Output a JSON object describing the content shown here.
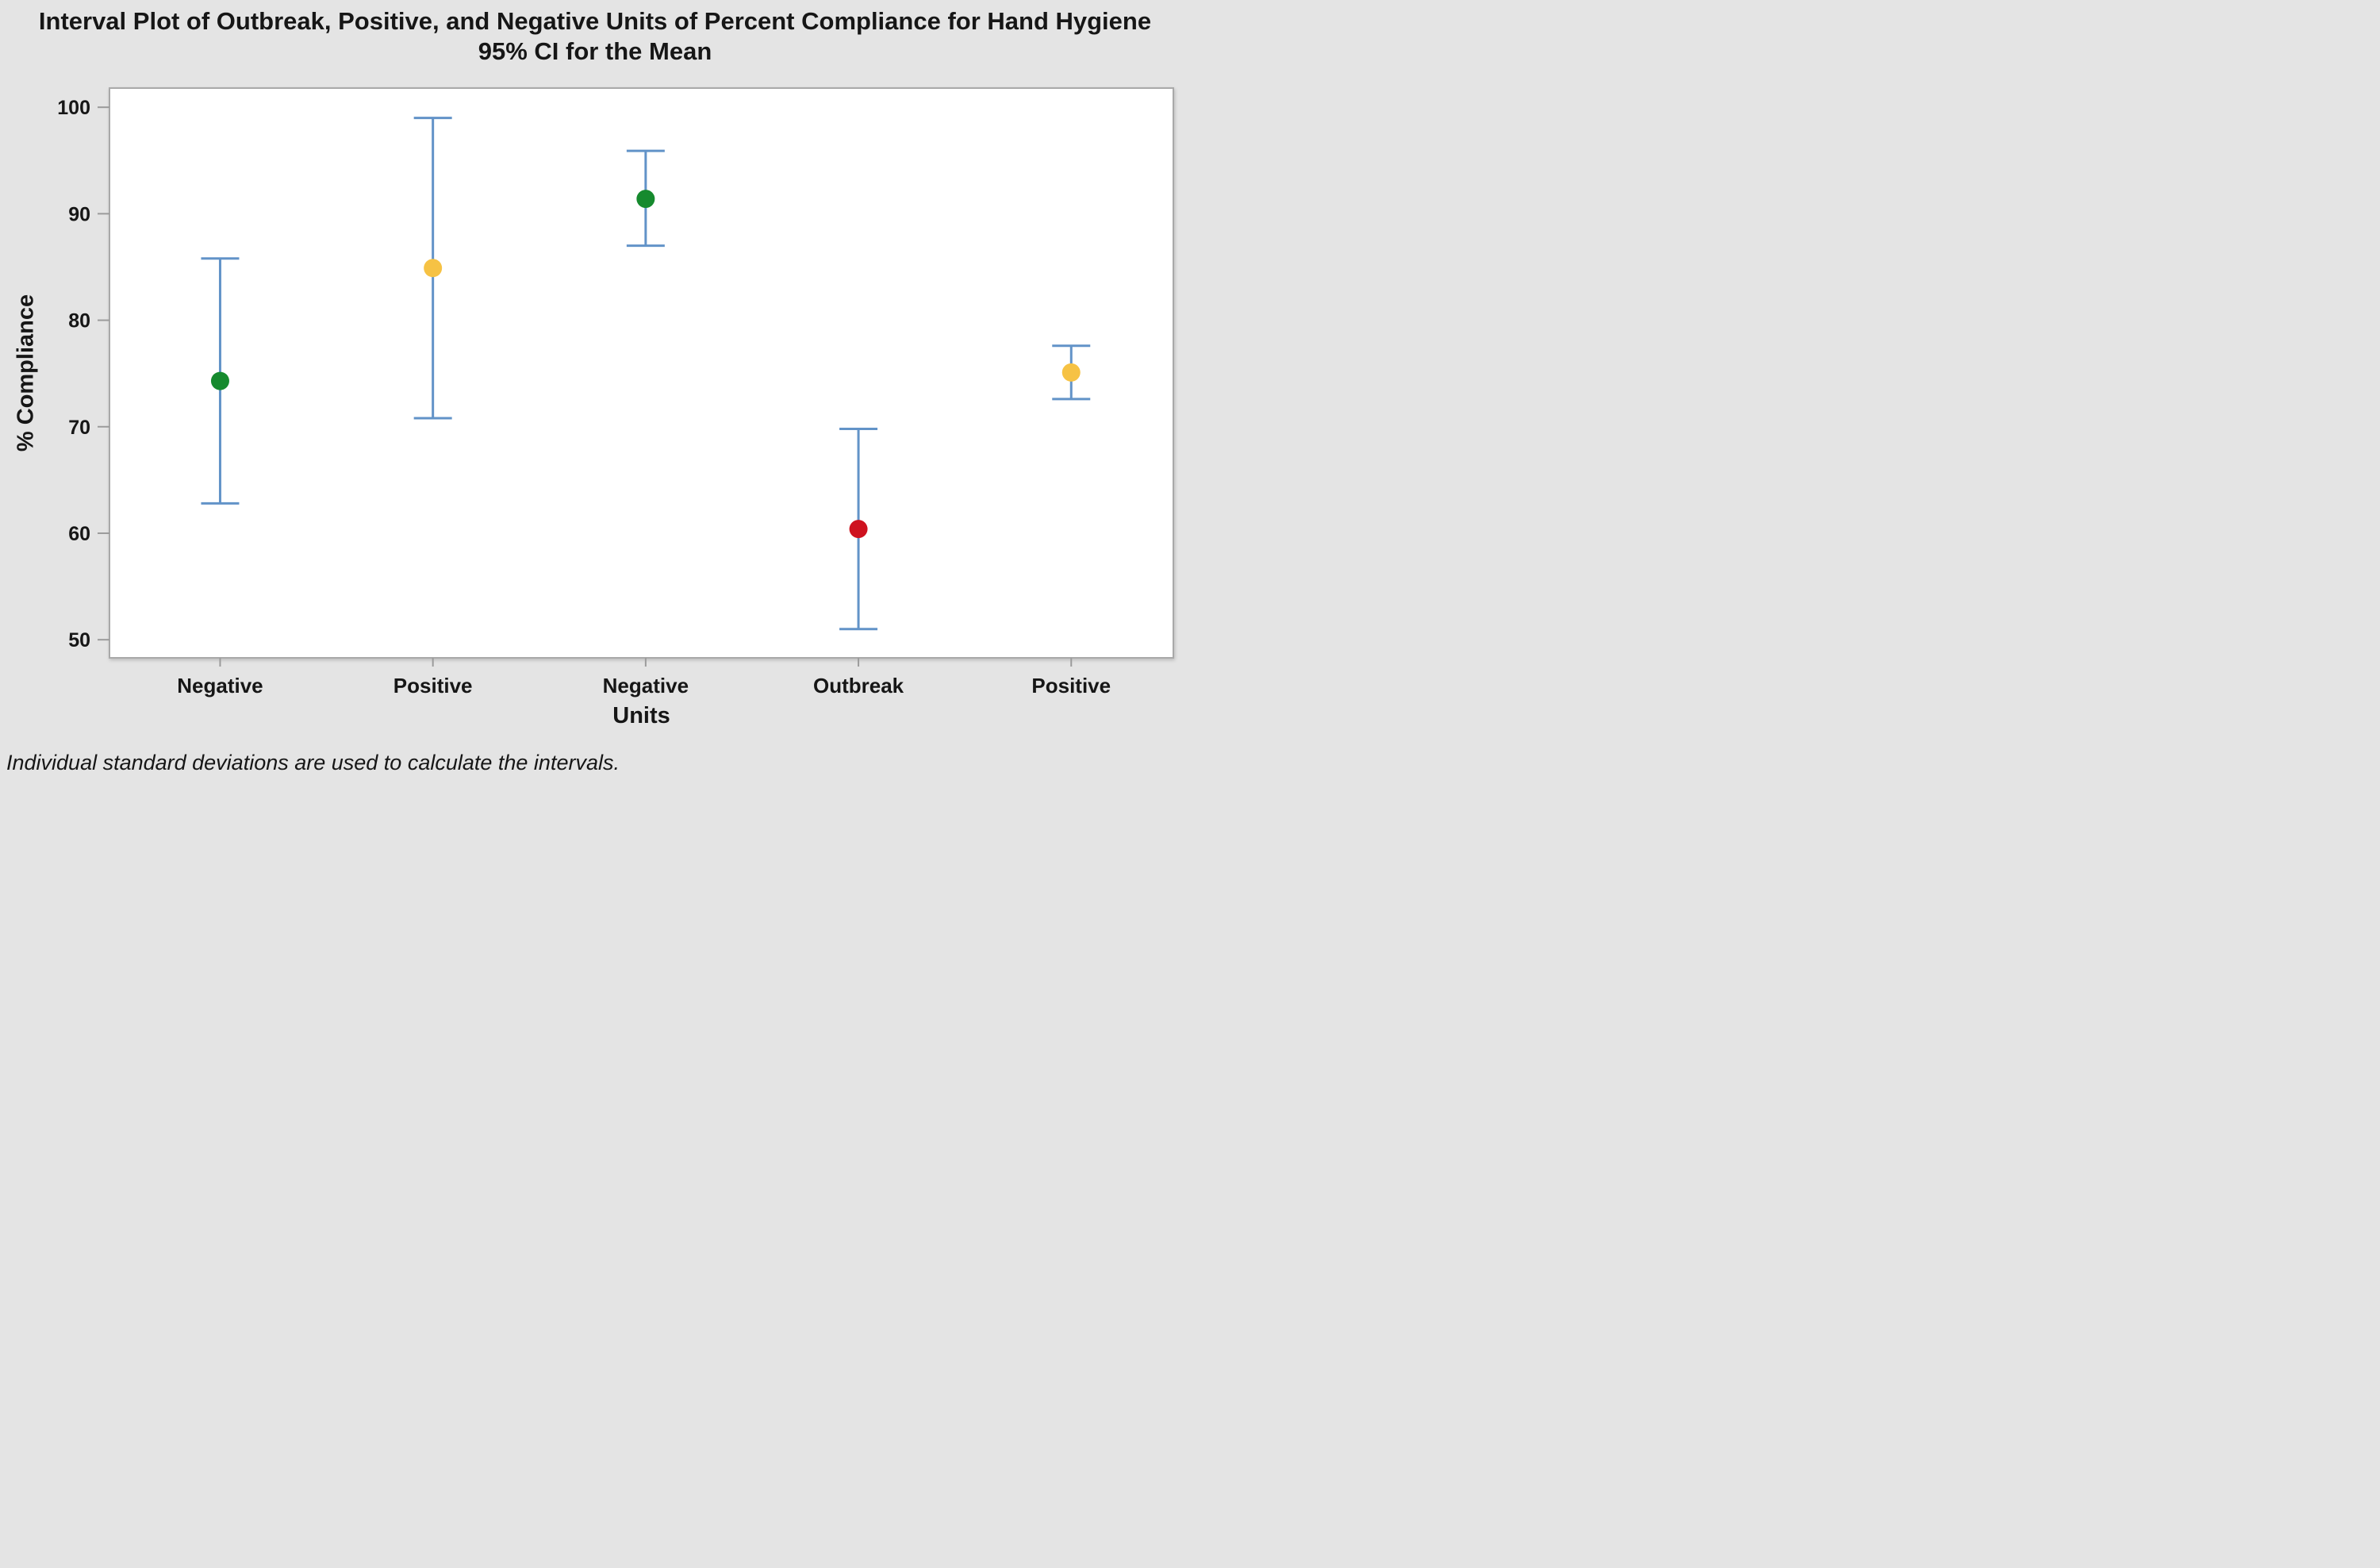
{
  "chart_data": {
    "type": "scatter",
    "subtype": "interval-plot-with-error-bars",
    "title": "Interval Plot of Outbreak, Positive, and Negative Units of Percent Compliance for Hand Hygiene",
    "subtitle": "95% CI for the Mean",
    "footnote": "Individual standard deviations are used to calculate the intervals.",
    "xlabel": "Units",
    "ylabel": "% Compliance",
    "ylim": [
      48.3,
      101.8
    ],
    "yticks": [
      50,
      60,
      70,
      80,
      90,
      100
    ],
    "grid": false,
    "legend": "none",
    "categories": [
      "Negative",
      "Positive",
      "Negative",
      "Outbreak",
      "Positive"
    ],
    "points": [
      {
        "category": "Negative",
        "mean": 74.3,
        "ci_lower": 62.8,
        "ci_upper": 85.8,
        "marker_color": "#168A2E",
        "marker_color_name": "green"
      },
      {
        "category": "Positive",
        "mean": 84.9,
        "ci_lower": 70.8,
        "ci_upper": 99.0,
        "marker_color": "#F6C244",
        "marker_color_name": "yellow"
      },
      {
        "category": "Negative",
        "mean": 91.4,
        "ci_lower": 87.0,
        "ci_upper": 95.9,
        "marker_color": "#168A2E",
        "marker_color_name": "green"
      },
      {
        "category": "Outbreak",
        "mean": 60.4,
        "ci_lower": 51.0,
        "ci_upper": 69.8,
        "marker_color": "#CE121F",
        "marker_color_name": "red"
      },
      {
        "category": "Positive",
        "mean": 75.1,
        "ci_lower": 72.6,
        "ci_upper": 77.6,
        "marker_color": "#F6C244",
        "marker_color_name": "yellow"
      }
    ],
    "interval_bar_color": "#6293C8"
  },
  "colors": {
    "page_background": "#E4E4E4",
    "plot_background": "#FFFFFF",
    "plot_border": "#A9A9A9",
    "tick_mark": "#9B9B9B",
    "text": "#161616"
  }
}
